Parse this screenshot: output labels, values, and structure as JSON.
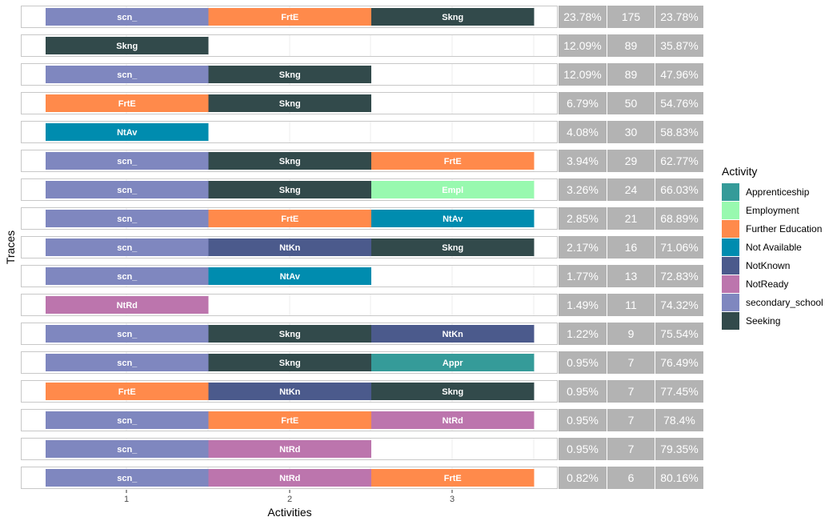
{
  "chart_data": {
    "type": "bar",
    "subtype": "trace-explorer",
    "xlabel": "Activities",
    "ylabel": "Traces",
    "x_ticks": [
      1,
      2,
      3
    ],
    "legend": {
      "title": "Activity",
      "placement": "right",
      "entries": [
        {
          "name": "Apprenticeship",
          "code": "Appr",
          "color": "#359B99"
        },
        {
          "name": "Employment",
          "code": "Empl",
          "color": "#98F9AF"
        },
        {
          "name": "Further Education",
          "code": "FrtE",
          "color": "#FF8A4B"
        },
        {
          "name": "Not Available",
          "code": "NtAv",
          "color": "#008CAF"
        },
        {
          "name": "NotKnown",
          "code": "NtKn",
          "color": "#4B5A8C"
        },
        {
          "name": "NotReady",
          "code": "NtRd",
          "color": "#BC75AD"
        },
        {
          "name": "secondary_school",
          "code": "scn_",
          "color": "#7F87BF"
        },
        {
          "name": "Seeking",
          "code": "Skng",
          "color": "#324A4B"
        }
      ]
    },
    "traces": [
      {
        "activities": [
          "scn_",
          "FrtE",
          "Skng"
        ],
        "relative_frequency": "23.78%",
        "absolute_frequency": "175",
        "cumulative": "23.78%"
      },
      {
        "activities": [
          "Skng"
        ],
        "relative_frequency": "12.09%",
        "absolute_frequency": "89",
        "cumulative": "35.87%"
      },
      {
        "activities": [
          "scn_",
          "Skng"
        ],
        "relative_frequency": "12.09%",
        "absolute_frequency": "89",
        "cumulative": "47.96%"
      },
      {
        "activities": [
          "FrtE",
          "Skng"
        ],
        "relative_frequency": "6.79%",
        "absolute_frequency": "50",
        "cumulative": "54.76%"
      },
      {
        "activities": [
          "NtAv"
        ],
        "relative_frequency": "4.08%",
        "absolute_frequency": "30",
        "cumulative": "58.83%"
      },
      {
        "activities": [
          "scn_",
          "Skng",
          "FrtE"
        ],
        "relative_frequency": "3.94%",
        "absolute_frequency": "29",
        "cumulative": "62.77%"
      },
      {
        "activities": [
          "scn_",
          "Skng",
          "Empl"
        ],
        "relative_frequency": "3.26%",
        "absolute_frequency": "24",
        "cumulative": "66.03%"
      },
      {
        "activities": [
          "scn_",
          "FrtE",
          "NtAv"
        ],
        "relative_frequency": "2.85%",
        "absolute_frequency": "21",
        "cumulative": "68.89%"
      },
      {
        "activities": [
          "scn_",
          "NtKn",
          "Skng"
        ],
        "relative_frequency": "2.17%",
        "absolute_frequency": "16",
        "cumulative": "71.06%"
      },
      {
        "activities": [
          "scn_",
          "NtAv"
        ],
        "relative_frequency": "1.77%",
        "absolute_frequency": "13",
        "cumulative": "72.83%"
      },
      {
        "activities": [
          "NtRd"
        ],
        "relative_frequency": "1.49%",
        "absolute_frequency": "11",
        "cumulative": "74.32%"
      },
      {
        "activities": [
          "scn_",
          "Skng",
          "NtKn"
        ],
        "relative_frequency": "1.22%",
        "absolute_frequency": "9",
        "cumulative": "75.54%"
      },
      {
        "activities": [
          "scn_",
          "Skng",
          "Appr"
        ],
        "relative_frequency": "0.95%",
        "absolute_frequency": "7",
        "cumulative": "76.49%"
      },
      {
        "activities": [
          "FrtE",
          "NtKn",
          "Skng"
        ],
        "relative_frequency": "0.95%",
        "absolute_frequency": "7",
        "cumulative": "77.45%"
      },
      {
        "activities": [
          "scn_",
          "FrtE",
          "NtRd"
        ],
        "relative_frequency": "0.95%",
        "absolute_frequency": "7",
        "cumulative": "78.4%"
      },
      {
        "activities": [
          "scn_",
          "NtRd"
        ],
        "relative_frequency": "0.95%",
        "absolute_frequency": "7",
        "cumulative": "79.35%"
      },
      {
        "activities": [
          "scn_",
          "NtRd",
          "FrtE"
        ],
        "relative_frequency": "0.82%",
        "absolute_frequency": "6",
        "cumulative": "80.16%"
      }
    ]
  }
}
